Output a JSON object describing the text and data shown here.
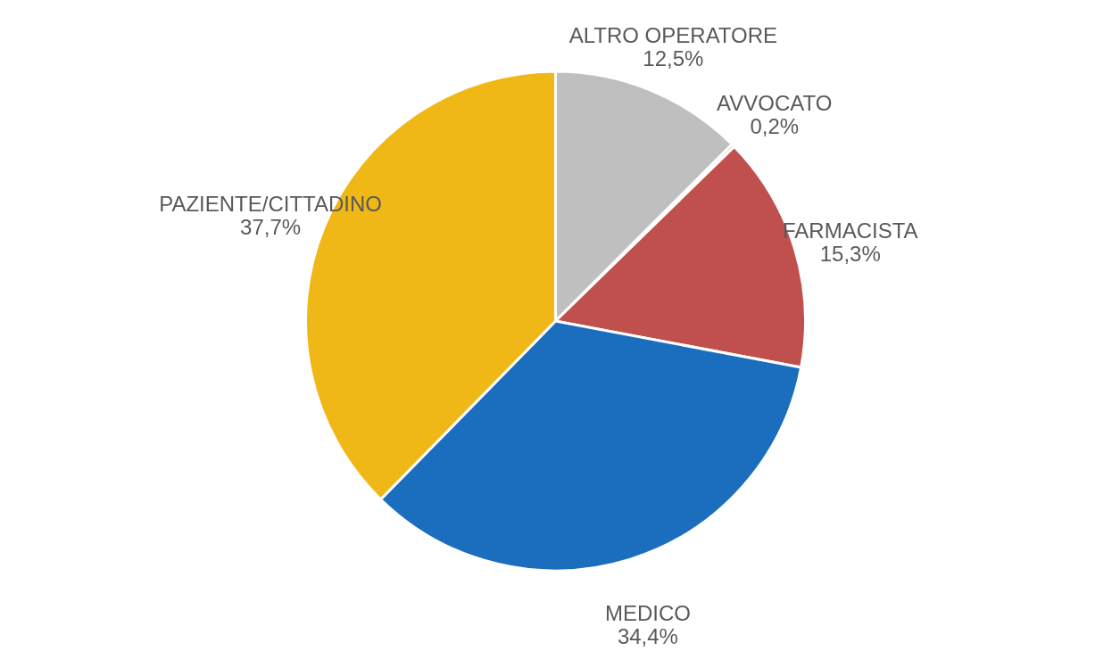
{
  "chart_data": {
    "type": "pie",
    "categories": [
      "ALTRO OPERATORE",
      "AVVOCATO",
      "FARMACISTA",
      "MEDICO",
      "PAZIENTE/CITTADINO"
    ],
    "values": [
      12.5,
      0.2,
      15.3,
      34.4,
      37.7
    ],
    "value_labels": [
      "12,5%",
      "0,2%",
      "15,3%",
      "34,4%",
      "37,7%"
    ],
    "colors": [
      "#bfbfbf",
      "#7f7f7f",
      "#c0504d",
      "#1a6ebd",
      "#f0b817"
    ],
    "legend": false
  }
}
